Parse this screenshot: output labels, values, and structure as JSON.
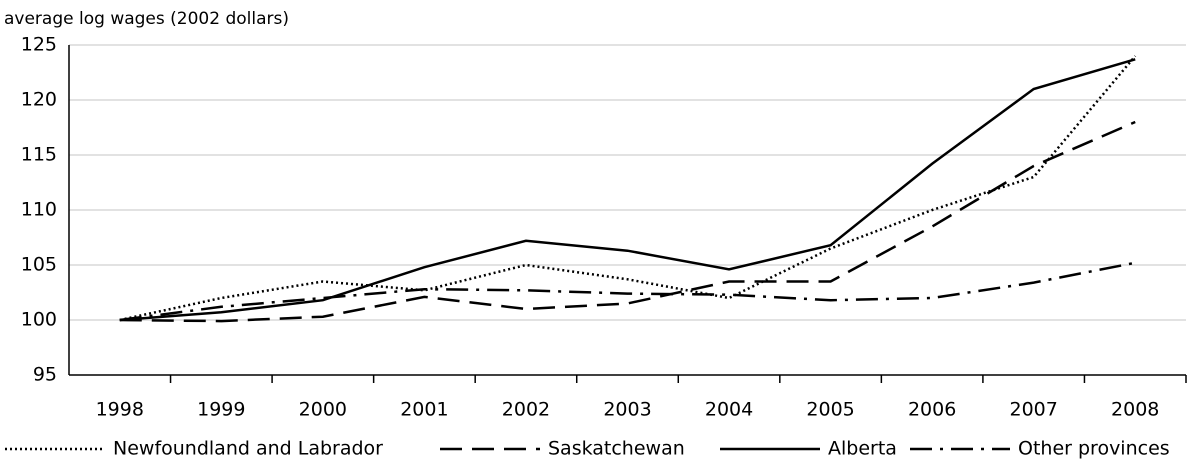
{
  "chart_data": {
    "type": "line",
    "y_label": "average log wages (2002 dollars)",
    "categories": [
      "1998",
      "1999",
      "2000",
      "2001",
      "2002",
      "2003",
      "2004",
      "2005",
      "2006",
      "2007",
      "2008"
    ],
    "series": [
      {
        "name": "Newfoundland and Labrador",
        "color": "#000000",
        "line_style": "dotted",
        "values": [
          100,
          102,
          103.5,
          102.7,
          105,
          103.7,
          102,
          106.5,
          110,
          113,
          124
        ]
      },
      {
        "name": "Saskatchewan",
        "color": "#000000",
        "line_style": "dashed",
        "values": [
          100,
          99.9,
          100.3,
          102.1,
          101,
          101.5,
          103.5,
          103.5,
          108.5,
          114,
          118
        ]
      },
      {
        "name": "Alberta",
        "color": "#000000",
        "line_style": "solid",
        "values": [
          100,
          100.7,
          101.8,
          104.8,
          107.2,
          106.3,
          104.6,
          106.8,
          114.2,
          121,
          123.7
        ]
      },
      {
        "name": "Other provinces",
        "color": "#000000",
        "line_style": "dashdot",
        "values": [
          100,
          101.2,
          102,
          102.8,
          102.7,
          102.4,
          102.3,
          101.8,
          102,
          103.4,
          105.2
        ]
      }
    ],
    "ylim": [
      95,
      125
    ],
    "yticks": [
      95,
      100,
      105,
      110,
      115,
      120,
      125
    ],
    "grid": true,
    "legend": "bottom"
  }
}
